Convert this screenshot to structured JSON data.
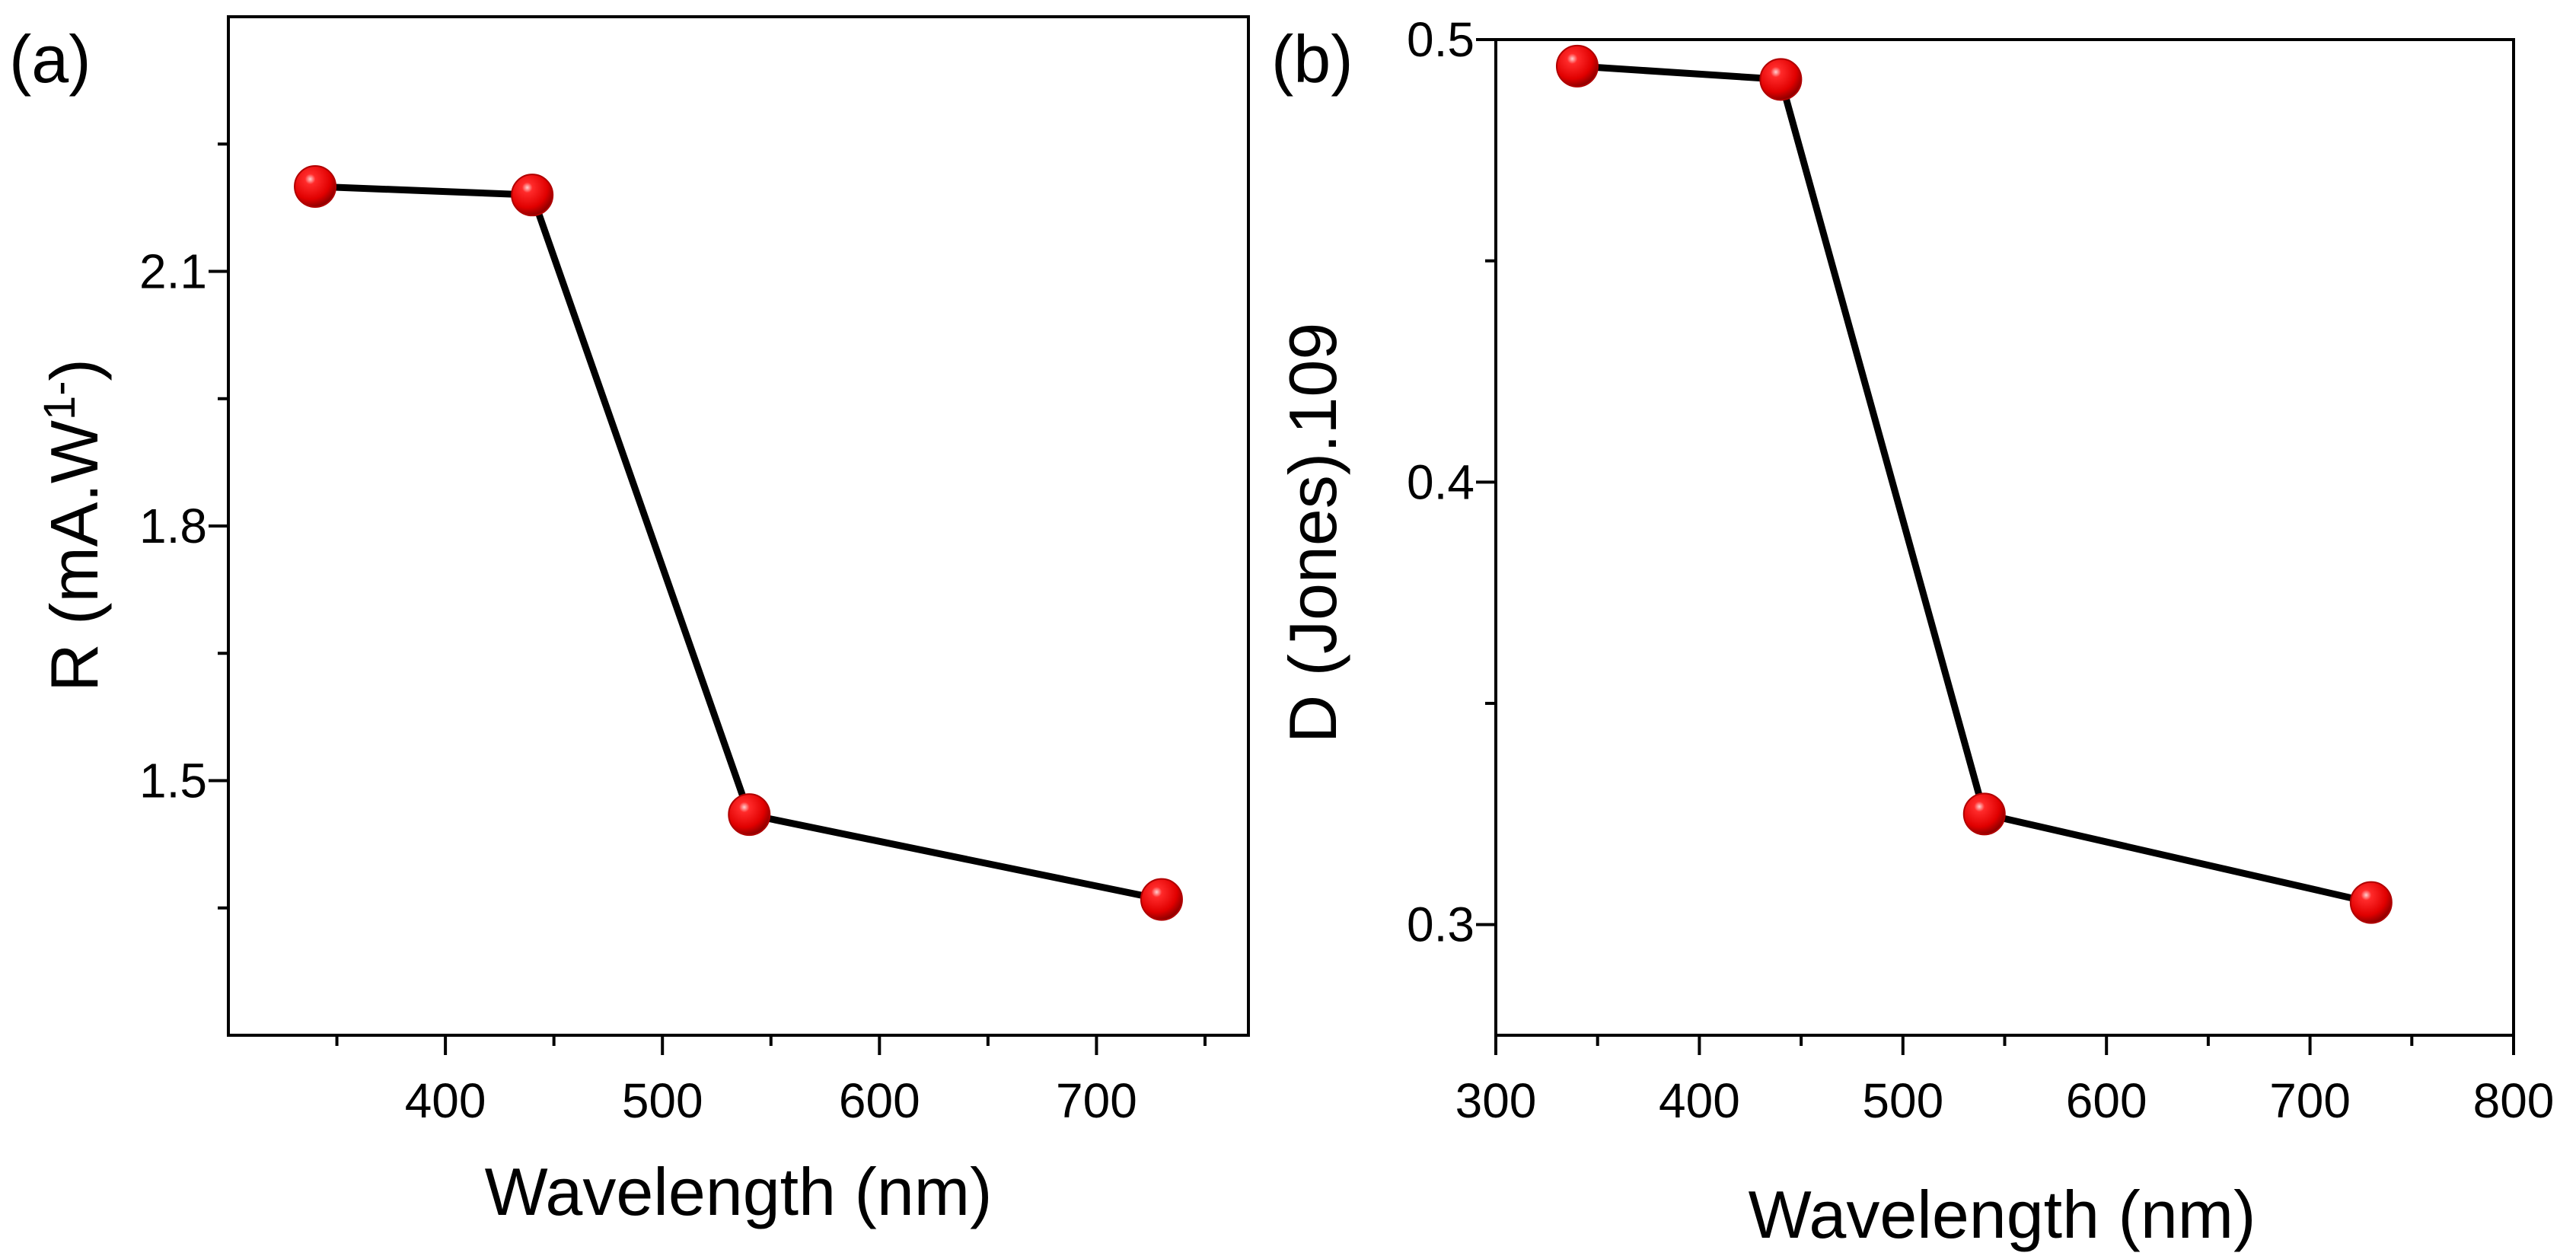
{
  "chart_data": [
    {
      "panel": "(a)",
      "type": "line",
      "xlabel": "Wavelength (nm)",
      "ylabel_main": "R (mA.W",
      "ylabel_sup": "1-",
      "ylabel_tail": ")",
      "xlim": [
        300,
        770
      ],
      "ylim": [
        1.2,
        2.4
      ],
      "x_major_ticks": [
        400,
        500,
        600,
        700
      ],
      "x_minor_ticks": [
        350,
        450,
        550,
        650,
        750
      ],
      "x_tick_labels": [
        "400",
        "500",
        "600",
        "700"
      ],
      "y_major_ticks": [
        1.5,
        1.8,
        2.1
      ],
      "y_minor_ticks": [
        1.35,
        1.65,
        1.95,
        2.25
      ],
      "y_tick_labels": [
        "1.5",
        "1.8",
        "2.1"
      ],
      "series": [
        {
          "name": "R",
          "x": [
            340,
            440,
            540,
            730
          ],
          "y": [
            2.2,
            2.19,
            1.46,
            1.36
          ],
          "marker": "sphere",
          "color": "#e60000",
          "line_color": "#000000"
        }
      ]
    },
    {
      "panel": "(b)",
      "type": "line",
      "xlabel": "Wavelength (nm)",
      "ylabel": "D (Jones).109",
      "xlim": [
        300,
        800
      ],
      "ylim": [
        0.275,
        0.5
      ],
      "x_major_ticks": [
        300,
        400,
        500,
        600,
        700,
        800
      ],
      "x_minor_ticks": [
        350,
        450,
        550,
        650,
        750
      ],
      "x_tick_labels": [
        "300",
        "400",
        "500",
        "600",
        "700",
        "800"
      ],
      "y_major_ticks": [
        0.3,
        0.4,
        0.5
      ],
      "y_minor_ticks": [
        0.35,
        0.45
      ],
      "y_tick_labels": [
        "0.3",
        "0.4",
        "0.5"
      ],
      "series": [
        {
          "name": "D",
          "x": [
            340,
            440,
            540,
            730
          ],
          "y": [
            0.494,
            0.491,
            0.325,
            0.305
          ],
          "marker": "sphere",
          "color": "#e60000",
          "line_color": "#000000"
        }
      ]
    }
  ]
}
